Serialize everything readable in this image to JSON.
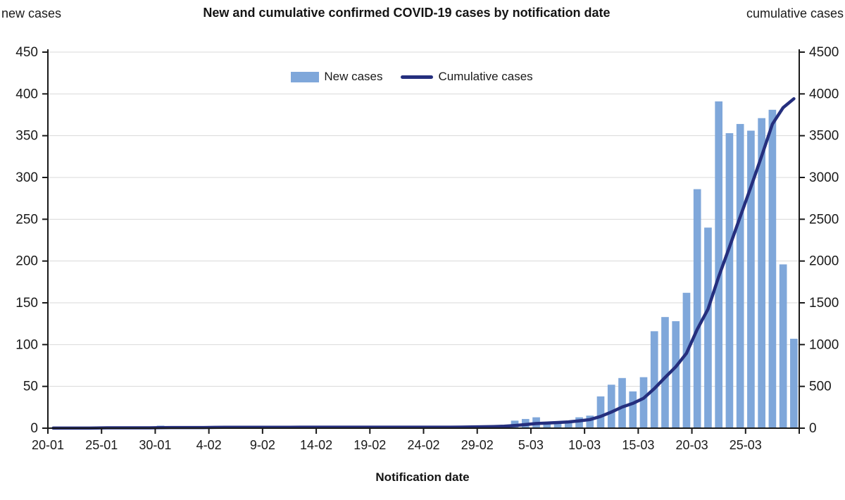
{
  "title": "New and cumulative confirmed COVID-19 cases by notification date",
  "left_corner_label": "new cases",
  "right_corner_label": "cumulative cases",
  "x_axis_title": "Notification date",
  "legend": {
    "bars_label": "New cases",
    "line_label": "Cumulative cases"
  },
  "colors": {
    "bar": "#7FA7DA",
    "line": "#252F7E",
    "axis": "#1a1a1a",
    "grid": "#d9d9d9"
  },
  "chart_data": {
    "type": "bar",
    "subtype": "combo-bar-line",
    "title": "New and cumulative confirmed COVID-19 cases by notification date",
    "xlabel": "Notification date",
    "left_axis": {
      "label": "new cases",
      "min": 0,
      "max": 450,
      "step": 50,
      "ticks": [
        0,
        50,
        100,
        150,
        200,
        250,
        300,
        350,
        400,
        450
      ]
    },
    "right_axis": {
      "label": "cumulative cases",
      "min": 0,
      "max": 4500,
      "step": 500,
      "ticks": [
        0,
        500,
        1000,
        1500,
        2000,
        2500,
        3000,
        3500,
        4000,
        4500
      ]
    },
    "x_tick_labels": [
      "20-01",
      "25-01",
      "30-01",
      "4-02",
      "9-02",
      "14-02",
      "19-02",
      "24-02",
      "29-02",
      "5-03",
      "10-03",
      "15-03",
      "20-03",
      "25-03"
    ],
    "x_tick_every_n_days": 5,
    "grid": "horizontal",
    "legend_position": "top-center",
    "categories": [
      "20-01",
      "21-01",
      "22-01",
      "23-01",
      "24-01",
      "25-01",
      "26-01",
      "27-01",
      "28-01",
      "29-01",
      "30-01",
      "31-01",
      "1-02",
      "2-02",
      "3-02",
      "4-02",
      "5-02",
      "6-02",
      "7-02",
      "8-02",
      "9-02",
      "10-02",
      "11-02",
      "12-02",
      "13-02",
      "14-02",
      "15-02",
      "16-02",
      "17-02",
      "18-02",
      "19-02",
      "20-02",
      "21-02",
      "22-02",
      "23-02",
      "24-02",
      "25-02",
      "26-02",
      "27-02",
      "28-02",
      "29-02",
      "1-03",
      "2-03",
      "3-03",
      "4-03",
      "5-03",
      "6-03",
      "7-03",
      "8-03",
      "9-03",
      "10-03",
      "11-03",
      "12-03",
      "13-03",
      "14-03",
      "15-03",
      "16-03",
      "17-03",
      "18-03",
      "19-03",
      "20-03",
      "21-03",
      "22-03",
      "23-03",
      "24-03",
      "25-03",
      "26-03",
      "27-03",
      "28-03",
      "29-03"
    ],
    "series": [
      {
        "name": "New cases",
        "type": "bar",
        "axis": "left",
        "color": "#7FA7DA",
        "values": [
          1,
          0,
          0,
          0,
          1,
          2,
          0,
          0,
          0,
          0,
          3,
          1,
          0,
          0,
          0,
          1,
          1,
          0,
          0,
          0,
          0,
          0,
          1,
          1,
          0,
          0,
          0,
          0,
          0,
          0,
          0,
          0,
          0,
          0,
          0,
          0,
          0,
          0,
          1,
          2,
          2,
          2,
          4,
          9,
          11,
          13,
          5,
          6,
          8,
          13,
          15,
          38,
          52,
          60,
          44,
          61,
          116,
          133,
          128,
          162,
          286,
          240,
          391,
          353,
          364,
          356,
          371,
          381,
          196,
          107
        ]
      },
      {
        "name": "Cumulative cases",
        "type": "line",
        "axis": "right",
        "color": "#252F7E",
        "values": [
          1,
          1,
          1,
          1,
          2,
          4,
          4,
          4,
          4,
          4,
          7,
          8,
          8,
          8,
          8,
          9,
          10,
          10,
          10,
          10,
          10,
          10,
          11,
          12,
          12,
          12,
          12,
          12,
          12,
          12,
          12,
          12,
          12,
          12,
          12,
          12,
          12,
          12,
          13,
          15,
          17,
          19,
          23,
          32,
          43,
          56,
          61,
          67,
          75,
          88,
          103,
          141,
          193,
          253,
          297,
          358,
          474,
          607,
          735,
          897,
          1183,
          1423,
          1814,
          2167,
          2531,
          2887,
          3258,
          3639,
          3835,
          3942
        ]
      }
    ]
  }
}
